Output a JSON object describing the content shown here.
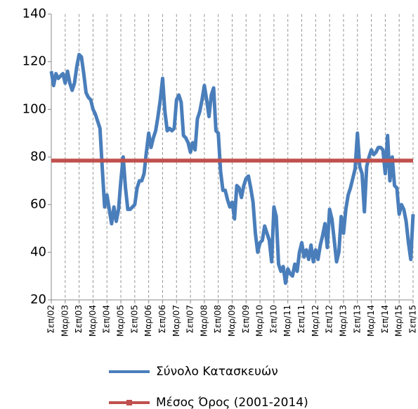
{
  "chart_data": {
    "type": "line",
    "categories": [
      "Σεπ/02",
      null,
      null,
      null,
      null,
      null,
      "Μαρ/03",
      null,
      null,
      null,
      null,
      null,
      "Σεπ/03",
      null,
      null,
      null,
      null,
      null,
      "Μαρ/04",
      null,
      null,
      null,
      null,
      null,
      "Σεπ/04",
      null,
      null,
      null,
      null,
      null,
      "Μαρ/05",
      null,
      null,
      null,
      null,
      null,
      "Σεπ/05",
      null,
      null,
      null,
      null,
      null,
      "Μαρ/06",
      null,
      null,
      null,
      null,
      null,
      "Σεπ/06",
      null,
      null,
      null,
      null,
      null,
      "Μαρ/07",
      null,
      null,
      null,
      null,
      null,
      "Σεπ/07",
      null,
      null,
      null,
      null,
      null,
      "Μαρ/08",
      null,
      null,
      null,
      null,
      null,
      "Σεπ/08",
      null,
      null,
      null,
      null,
      null,
      "Μαρ/09",
      null,
      null,
      null,
      null,
      null,
      "Σεπ/09",
      null,
      null,
      null,
      null,
      null,
      "Μαρ/10",
      null,
      null,
      null,
      null,
      null,
      "Σεπ/10",
      null,
      null,
      null,
      null,
      null,
      "Μαρ/11",
      null,
      null,
      null,
      null,
      null,
      "Σεπ/11",
      null,
      null,
      null,
      null,
      null,
      "Μαρ/12",
      null,
      null,
      null,
      null,
      null,
      "Σεπ/12",
      null,
      null,
      null,
      null,
      null,
      "Μαρ/13",
      null,
      null,
      null,
      null,
      null,
      "Σεπ/13",
      null,
      null,
      null,
      null,
      null,
      "Μαρ/14",
      null,
      null,
      null,
      null,
      null,
      "Σεπ/14",
      null,
      null,
      null,
      null,
      null,
      "Μαρ/15",
      null,
      null,
      null,
      null,
      null,
      "Σεπ/15"
    ],
    "series": [
      {
        "name": "Σύνολο Κατασκευών",
        "color": "#4a7ebb",
        "values": [
          116,
          110,
          115,
          113,
          114,
          115,
          111,
          116,
          111,
          108,
          111,
          118,
          123,
          122,
          115,
          107,
          105,
          104,
          100,
          98,
          95,
          92,
          75,
          59,
          64,
          58,
          52,
          59,
          53,
          58,
          70,
          80,
          67,
          58,
          58,
          59,
          60,
          67,
          70,
          70,
          73,
          82,
          90,
          84,
          88,
          91,
          97,
          104,
          113,
          99,
          91,
          92,
          91,
          92,
          104,
          106,
          103,
          89,
          88,
          86,
          82,
          86,
          83,
          96,
          99,
          104,
          110,
          104,
          97,
          106,
          109,
          91,
          90,
          74,
          66,
          66,
          62,
          59,
          61,
          54,
          68,
          67,
          63,
          68,
          71,
          72,
          67,
          61,
          48,
          40,
          44,
          45,
          51,
          48,
          45,
          36,
          59,
          55,
          35,
          32,
          34,
          27,
          33,
          31,
          30,
          35,
          32,
          40,
          44,
          38,
          41,
          37,
          43,
          36,
          41,
          37,
          43,
          47,
          52,
          42,
          58,
          54,
          45,
          36,
          40,
          55,
          48,
          58,
          64,
          67,
          71,
          75,
          90,
          76,
          73,
          57,
          76,
          80,
          83,
          81,
          82,
          84,
          84,
          83,
          73,
          89,
          70,
          80,
          68,
          67,
          56,
          60,
          58,
          53,
          44,
          37,
          56
        ]
      },
      {
        "name": "Μέσος Όρος (2001-2014)",
        "color": "#c0504d",
        "values": [
          78.5,
          78.5,
          78.5,
          78.5,
          78.5,
          78.5,
          78.5,
          78.5,
          78.5,
          78.5,
          78.5,
          78.5,
          78.5,
          78.5,
          78.5,
          78.5,
          78.5,
          78.5,
          78.5,
          78.5,
          78.5,
          78.5,
          78.5,
          78.5,
          78.5,
          78.5,
          78.5,
          78.5,
          78.5,
          78.5,
          78.5,
          78.5,
          78.5,
          78.5,
          78.5,
          78.5,
          78.5,
          78.5,
          78.5,
          78.5,
          78.5,
          78.5,
          78.5,
          78.5,
          78.5,
          78.5,
          78.5,
          78.5,
          78.5,
          78.5,
          78.5,
          78.5,
          78.5,
          78.5,
          78.5,
          78.5,
          78.5,
          78.5,
          78.5,
          78.5,
          78.5,
          78.5,
          78.5,
          78.5,
          78.5,
          78.5,
          78.5,
          78.5,
          78.5,
          78.5,
          78.5,
          78.5,
          78.5,
          78.5,
          78.5,
          78.5,
          78.5,
          78.5,
          78.5,
          78.5,
          78.5,
          78.5,
          78.5,
          78.5,
          78.5,
          78.5,
          78.5,
          78.5,
          78.5,
          78.5,
          78.5,
          78.5,
          78.5,
          78.5,
          78.5,
          78.5,
          78.5,
          78.5,
          78.5,
          78.5,
          78.5,
          78.5,
          78.5,
          78.5,
          78.5,
          78.5,
          78.5,
          78.5,
          78.5,
          78.5,
          78.5,
          78.5,
          78.5,
          78.5,
          78.5,
          78.5,
          78.5,
          78.5,
          78.5,
          78.5,
          78.5,
          78.5,
          78.5,
          78.5,
          78.5,
          78.5,
          78.5,
          78.5,
          78.5,
          78.5,
          78.5,
          78.5,
          78.5,
          78.5,
          78.5,
          78.5,
          78.5,
          78.5,
          78.5,
          78.5,
          78.5,
          78.5,
          78.5,
          78.5,
          78.5,
          78.5,
          78.5,
          78.5,
          78.5,
          78.5,
          78.5,
          78.5,
          78.5,
          78.5,
          78.5,
          78.5,
          78.5
        ]
      }
    ],
    "ylim": [
      20,
      140
    ],
    "yticks": [
      20,
      40,
      60,
      80,
      100,
      120,
      140
    ],
    "grid": "x"
  }
}
